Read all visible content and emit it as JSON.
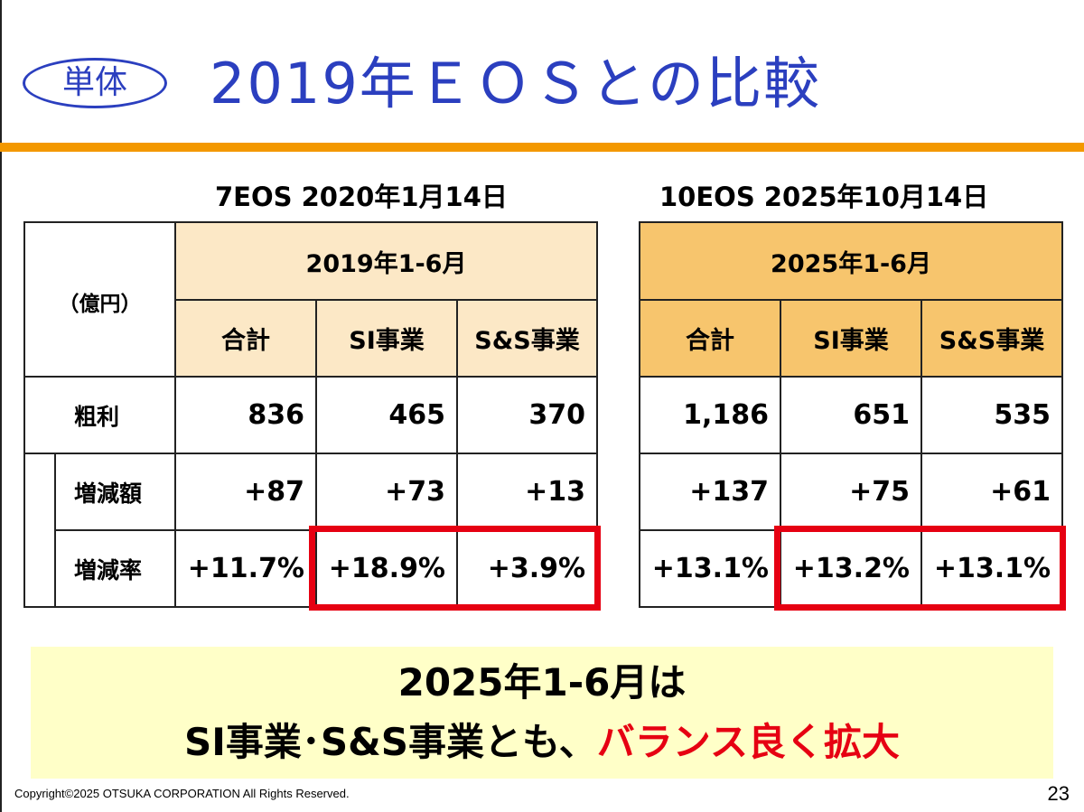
{
  "badge": "単体",
  "title": "2019年ＥＯＳとの比較",
  "left_table": {
    "caption": "7EOS  2020年1月14日",
    "period": "2019年1-6月",
    "unit": "（億円）",
    "cols": [
      "合計",
      "SI事業",
      "S&S事業"
    ],
    "rows": [
      {
        "label": "粗利",
        "values": [
          "836",
          "465",
          "370"
        ]
      },
      {
        "label": "増減額",
        "values": [
          "+87",
          "+73",
          "+13"
        ]
      },
      {
        "label": "増減率",
        "values": [
          "+11.7%",
          "+18.9%",
          "+3.9%"
        ]
      }
    ]
  },
  "right_table": {
    "caption": "10EOS  2025年10月14日",
    "period": "2025年1-6月",
    "cols": [
      "合計",
      "SI事業",
      "S&S事業"
    ],
    "rows": [
      {
        "values": [
          "1,186",
          "651",
          "535"
        ]
      },
      {
        "values": [
          "+137",
          "+75",
          "+61"
        ]
      },
      {
        "values": [
          "+13.1%",
          "+13.2%",
          "+13.1%"
        ]
      }
    ]
  },
  "summary": {
    "line1": "2025年1-6月は",
    "line2_prefix": "SI事業･S&S事業とも、",
    "line2_highlight": "バランス良く拡大"
  },
  "footer": {
    "copyright": "Copyright©2025 OTSUKA CORPORATION All Rights Reserved.",
    "page": "23"
  },
  "colors": {
    "title_blue": "#2b3fbf",
    "accent_orange": "#f39800",
    "header_light": "#fce8c6",
    "header_dark": "#f7c56d",
    "highlight_red": "#e60012",
    "summary_bg": "#ffffc8"
  }
}
